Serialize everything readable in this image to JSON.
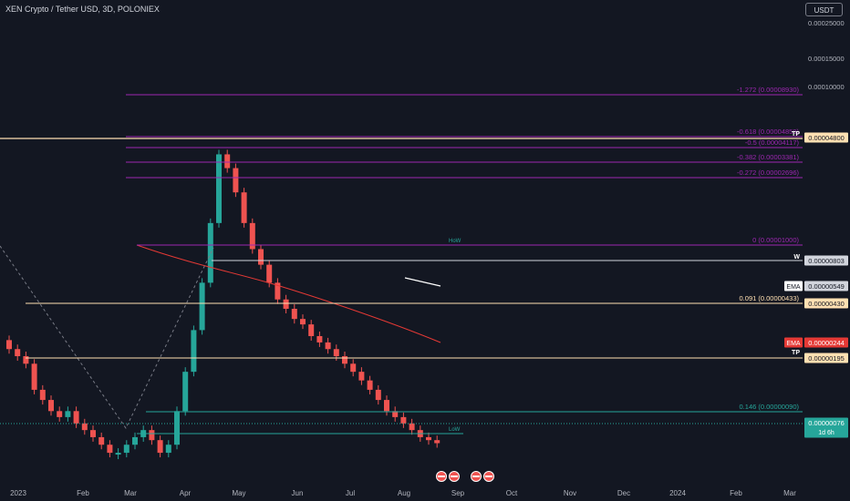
{
  "header": {
    "title": "XEN Crypto / Tether USD, 3D, POLONIEX",
    "currency_button": "USDT"
  },
  "colors": {
    "background": "#131722",
    "up": "#26a69a",
    "down": "#ef5350",
    "axis_text": "#b2b5be",
    "fib": "#9c27b0",
    "tp": "#ffe0b2",
    "teal": "#26a69a",
    "white": "#d1d4dc",
    "ema": "#e53935",
    "current": "#26a69a"
  },
  "chart_data": {
    "type": "candlestick",
    "title": "XEN Crypto / Tether USD, 3D, POLONIEX",
    "y_scale": "log",
    "ylim": [
      5.5e-07,
      3e-05
    ],
    "x_tick_labels": [
      "2023",
      "Feb",
      "Mar",
      "Apr",
      "May",
      "Jun",
      "Jul",
      "Aug",
      "Sep",
      "Oct",
      "Nov",
      "Dec",
      "2024",
      "Feb",
      "Mar"
    ],
    "y_tick_labels": [
      "0.00025000",
      "0.00015000",
      "0.00010000"
    ],
    "price_labels": [
      {
        "text": "0.00004800",
        "kind": "tp"
      },
      {
        "text": "0.00000803",
        "kind": "white"
      },
      {
        "text": "0.00000549",
        "kind": "white",
        "tag": "EMA"
      },
      {
        "text": "0.00000430",
        "kind": "tp"
      },
      {
        "text": "0.00000244",
        "kind": "ema",
        "tag": "EMA"
      },
      {
        "text": "0.00000195",
        "kind": "tp"
      },
      {
        "text": "0.00000076",
        "kind": "current",
        "sub": "1d 6h"
      }
    ],
    "fib_levels": [
      {
        "label": "-1.272 (0.00008930)",
        "kind": "fib"
      },
      {
        "label": "-0.618 (0.00004859)",
        "kind": "fib"
      },
      {
        "label": "-0.5 (0.00004117)",
        "kind": "fib"
      },
      {
        "label": "-0.382 (0.00003381)",
        "kind": "fib"
      },
      {
        "label": "-0.272 (0.00002696)",
        "kind": "fib"
      },
      {
        "label": "0 (0.00001000)",
        "kind": "fib"
      },
      {
        "label": "0.091 (0.00000433)",
        "kind": "tp"
      },
      {
        "label": "0.146 (0.00000090)",
        "kind": "teal"
      }
    ],
    "markers": {
      "tp_top": "TP",
      "tp_bottom": "TP",
      "w": "W",
      "how": "HoW",
      "low": "LoW"
    },
    "series": [
      {
        "name": "XEN/USDT",
        "values": [
          1.7e-06,
          1.6e-06,
          1.5e-06,
          1.2e-06,
          1.1e-06,
          1e-06,
          9.5e-07,
          1e-06,
          9e-07,
          8.5e-07,
          8e-07,
          7.5e-07,
          7e-07,
          7e-07,
          7.5e-07,
          8e-07,
          8.5e-07,
          7.8e-07,
          7e-07,
          7.5e-07,
          1e-06,
          1.4e-06,
          2e-06,
          3e-06,
          5e-06,
          9e-06,
          8e-06,
          6.5e-06,
          5e-06,
          4e-06,
          3.5e-06,
          3e-06,
          2.6e-06,
          2.4e-06,
          2.2e-06,
          2.1e-06,
          1.9e-06,
          1.8e-06,
          1.7e-06,
          1.6e-06,
          1.5e-06,
          1.4e-06,
          1.3e-06,
          1.2e-06,
          1.1e-06,
          1e-06,
          9.5e-07,
          9e-07,
          8.5e-07,
          8e-07,
          7.8e-07,
          7.6e-07
        ]
      }
    ]
  }
}
